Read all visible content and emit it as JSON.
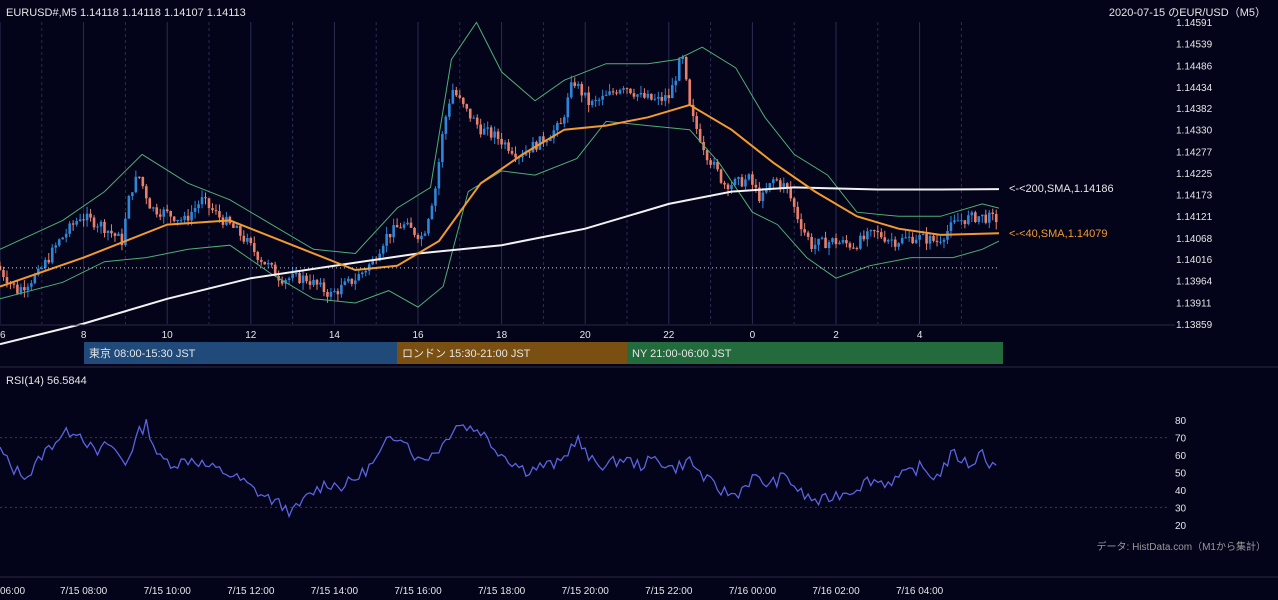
{
  "header": {
    "ticker": "EURUSD#,M5 1.14118 1.14118 1.14107 1.14113",
    "chart_title": "2020-07-15 のEUR/USD（M5）"
  },
  "sessions": [
    {
      "label": "東京 08:00-15:30 JST",
      "color": "#1f4a7a"
    },
    {
      "label": "ロンドン 15:30-21:00 JST",
      "color": "#7a4f12"
    },
    {
      "label": "NY 21:00-06:00 JST",
      "color": "#236a3c"
    }
  ],
  "indicators": {
    "rsi_label": "RSI(14) 56.5844",
    "sma200_label": "<-<200,SMA,1.14186",
    "sma40_label": "<-<40,SMA,1.14079"
  },
  "source_note": "データ: HistData.com（M1から集計）",
  "colors": {
    "background": "#03031a",
    "bull": "#2f86d6",
    "bear": "#e8806a",
    "sma200": "#f2f2f2",
    "sma40": "#f29a2e",
    "bollinger": "#4fae74",
    "rsi": "#5b63e0",
    "rsi_ref": "#3a3a55"
  },
  "chart_data": [
    {
      "type": "candlestick",
      "y_ticks": [
        "1.14591",
        "1.14539",
        "1.14486",
        "1.14434",
        "1.14382",
        "1.14330",
        "1.14277",
        "1.14225",
        "1.14173",
        "1.14121",
        "1.14068",
        "1.14016",
        "1.13964",
        "1.13911",
        "1.13859"
      ],
      "ylim": [
        1.13859,
        1.14591
      ],
      "x_ticks_hours": [
        "6",
        "8",
        "10",
        "12",
        "14",
        "16",
        "18",
        "20",
        "22",
        "0",
        "2",
        "4"
      ],
      "x_ticks_dates": [
        "06:00",
        "7/15 08:00",
        "7/15 10:00",
        "7/15 12:00",
        "7/15 14:00",
        "7/15 16:00",
        "7/15 18:00",
        "7/15 20:00",
        "7/15 22:00",
        "7/16 00:00",
        "7/16 02:00",
        "7/16 04:00"
      ],
      "x_range_hours": [
        6,
        29.9
      ],
      "last_price": 1.14113,
      "reference_line": 1.13995,
      "price_path": [
        [
          6.0,
          1.14
        ],
        [
          6.5,
          1.1394
        ],
        [
          7.0,
          1.1398
        ],
        [
          7.5,
          1.1406
        ],
        [
          8.0,
          1.1412
        ],
        [
          8.5,
          1.141
        ],
        [
          9.0,
          1.1406
        ],
        [
          9.2,
          1.1418
        ],
        [
          9.4,
          1.1422
        ],
        [
          9.7,
          1.1414
        ],
        [
          10.0,
          1.1413
        ],
        [
          10.5,
          1.1411
        ],
        [
          10.9,
          1.1416
        ],
        [
          11.2,
          1.1413
        ],
        [
          11.8,
          1.1408
        ],
        [
          12.3,
          1.1402
        ],
        [
          12.8,
          1.1397
        ],
        [
          13.4,
          1.1397
        ],
        [
          14.0,
          1.1393
        ],
        [
          14.6,
          1.1397
        ],
        [
          15.0,
          1.1401
        ],
        [
          15.3,
          1.1407
        ],
        [
          15.7,
          1.141
        ],
        [
          16.2,
          1.1407
        ],
        [
          16.5,
          1.1419
        ],
        [
          16.7,
          1.1434
        ],
        [
          16.9,
          1.1443
        ],
        [
          17.2,
          1.1438
        ],
        [
          17.6,
          1.1433
        ],
        [
          18.0,
          1.1431
        ],
        [
          18.5,
          1.1427
        ],
        [
          19.0,
          1.143
        ],
        [
          19.5,
          1.1434
        ],
        [
          19.8,
          1.1445
        ],
        [
          20.2,
          1.1439
        ],
        [
          20.6,
          1.1441
        ],
        [
          21.0,
          1.1444
        ],
        [
          21.4,
          1.1441
        ],
        [
          21.8,
          1.144
        ],
        [
          22.1,
          1.1441
        ],
        [
          22.4,
          1.1451
        ],
        [
          22.6,
          1.1437
        ],
        [
          23.0,
          1.1427
        ],
        [
          23.4,
          1.142
        ],
        [
          23.7,
          1.142
        ],
        [
          24.0,
          1.1421
        ],
        [
          24.3,
          1.1416
        ],
        [
          24.6,
          1.1421
        ],
        [
          24.9,
          1.1419
        ],
        [
          25.2,
          1.1411
        ],
        [
          25.5,
          1.1405
        ],
        [
          26.0,
          1.1406
        ],
        [
          26.5,
          1.1405
        ],
        [
          27.0,
          1.1408
        ],
        [
          27.5,
          1.1406
        ],
        [
          28.0,
          1.1407
        ],
        [
          28.5,
          1.1406
        ],
        [
          29.0,
          1.1411
        ],
        [
          29.5,
          1.1412
        ],
        [
          29.9,
          1.14113
        ]
      ],
      "sma200_path": [
        [
          6.0,
          1.1381
        ],
        [
          8.0,
          1.1386
        ],
        [
          10.0,
          1.1392
        ],
        [
          12.0,
          1.1397
        ],
        [
          14.0,
          1.14
        ],
        [
          16.0,
          1.1403
        ],
        [
          18.0,
          1.1405
        ],
        [
          20.0,
          1.1409
        ],
        [
          22.0,
          1.1415
        ],
        [
          23.5,
          1.1418
        ],
        [
          25.0,
          1.1419
        ],
        [
          27.0,
          1.14185
        ],
        [
          28.5,
          1.14185
        ],
        [
          29.9,
          1.14186
        ]
      ],
      "sma40_path": [
        [
          6.0,
          1.1395
        ],
        [
          8.0,
          1.1402
        ],
        [
          10.0,
          1.141
        ],
        [
          11.5,
          1.1411
        ],
        [
          13.0,
          1.1405
        ],
        [
          14.5,
          1.1399
        ],
        [
          15.5,
          1.14
        ],
        [
          16.5,
          1.1406
        ],
        [
          17.5,
          1.142
        ],
        [
          18.5,
          1.1427
        ],
        [
          19.5,
          1.1433
        ],
        [
          20.5,
          1.1434
        ],
        [
          21.5,
          1.1436
        ],
        [
          22.5,
          1.1439
        ],
        [
          23.5,
          1.1433
        ],
        [
          24.5,
          1.1425
        ],
        [
          25.5,
          1.1418
        ],
        [
          26.5,
          1.1412
        ],
        [
          27.5,
          1.1409
        ],
        [
          28.5,
          1.14075
        ],
        [
          29.9,
          1.14079
        ]
      ],
      "bollinger_upper_path": [
        [
          6.0,
          1.1404
        ],
        [
          7.5,
          1.1411
        ],
        [
          8.5,
          1.1418
        ],
        [
          9.4,
          1.1427
        ],
        [
          10.5,
          1.142
        ],
        [
          11.5,
          1.1416
        ],
        [
          12.5,
          1.141
        ],
        [
          13.5,
          1.1404
        ],
        [
          14.5,
          1.1403
        ],
        [
          15.5,
          1.1414
        ],
        [
          16.3,
          1.1419
        ],
        [
          16.8,
          1.145
        ],
        [
          17.4,
          1.1459
        ],
        [
          18.0,
          1.1447
        ],
        [
          18.8,
          1.144
        ],
        [
          19.5,
          1.1445
        ],
        [
          20.5,
          1.1449
        ],
        [
          21.5,
          1.1449
        ],
        [
          22.2,
          1.145
        ],
        [
          22.8,
          1.1453
        ],
        [
          23.6,
          1.1448
        ],
        [
          24.3,
          1.1436
        ],
        [
          25.0,
          1.1427
        ],
        [
          25.8,
          1.1422
        ],
        [
          26.5,
          1.1413
        ],
        [
          27.5,
          1.1412
        ],
        [
          28.5,
          1.1412
        ],
        [
          29.5,
          1.1415
        ],
        [
          29.9,
          1.1414
        ]
      ],
      "bollinger_lower_path": [
        [
          6.0,
          1.1392
        ],
        [
          7.5,
          1.1396
        ],
        [
          8.5,
          1.1401
        ],
        [
          9.5,
          1.1402
        ],
        [
          10.5,
          1.1404
        ],
        [
          11.5,
          1.1405
        ],
        [
          12.5,
          1.1398
        ],
        [
          13.5,
          1.1392
        ],
        [
          14.5,
          1.1391
        ],
        [
          15.3,
          1.1394
        ],
        [
          16.0,
          1.139
        ],
        [
          16.6,
          1.1395
        ],
        [
          17.2,
          1.1418
        ],
        [
          18.0,
          1.1423
        ],
        [
          18.8,
          1.1422
        ],
        [
          19.8,
          1.1426
        ],
        [
          20.5,
          1.1435
        ],
        [
          21.5,
          1.1434
        ],
        [
          22.5,
          1.1433
        ],
        [
          23.2,
          1.1425
        ],
        [
          24.0,
          1.1413
        ],
        [
          24.6,
          1.141
        ],
        [
          25.3,
          1.1402
        ],
        [
          26.0,
          1.1397
        ],
        [
          26.8,
          1.14
        ],
        [
          27.8,
          1.1402
        ],
        [
          28.8,
          1.1402
        ],
        [
          29.5,
          1.1404
        ],
        [
          29.9,
          1.1406
        ]
      ]
    },
    {
      "type": "line",
      "series_name": "RSI(14)",
      "y_ticks": [
        "80",
        "70",
        "60",
        "50",
        "40",
        "30",
        "20"
      ],
      "ylim": [
        17,
        87
      ],
      "path": [
        [
          6.0,
          63
        ],
        [
          6.3,
          52
        ],
        [
          6.7,
          48
        ],
        [
          7.0,
          60
        ],
        [
          7.4,
          70
        ],
        [
          7.8,
          75
        ],
        [
          8.0,
          70
        ],
        [
          8.3,
          60
        ],
        [
          8.6,
          67
        ],
        [
          9.0,
          55
        ],
        [
          9.3,
          72
        ],
        [
          9.5,
          78
        ],
        [
          9.8,
          58
        ],
        [
          10.2,
          55
        ],
        [
          10.6,
          58
        ],
        [
          11.0,
          53
        ],
        [
          11.4,
          50
        ],
        [
          11.8,
          45
        ],
        [
          12.2,
          38
        ],
        [
          12.6,
          33
        ],
        [
          13.0,
          27
        ],
        [
          13.4,
          37
        ],
        [
          13.8,
          44
        ],
        [
          14.2,
          42
        ],
        [
          14.6,
          48
        ],
        [
          15.0,
          57
        ],
        [
          15.3,
          69
        ],
        [
          15.6,
          72
        ],
        [
          16.0,
          57
        ],
        [
          16.3,
          60
        ],
        [
          16.6,
          66
        ],
        [
          16.9,
          78
        ],
        [
          17.2,
          76
        ],
        [
          17.5,
          74
        ],
        [
          17.8,
          65
        ],
        [
          18.2,
          57
        ],
        [
          18.6,
          51
        ],
        [
          19.0,
          54
        ],
        [
          19.4,
          55
        ],
        [
          19.8,
          70
        ],
        [
          20.1,
          57
        ],
        [
          20.5,
          54
        ],
        [
          20.9,
          58
        ],
        [
          21.3,
          54
        ],
        [
          21.7,
          58
        ],
        [
          22.1,
          52
        ],
        [
          22.5,
          57
        ],
        [
          22.8,
          48
        ],
        [
          23.2,
          40
        ],
        [
          23.6,
          37
        ],
        [
          24.0,
          47
        ],
        [
          24.4,
          43
        ],
        [
          24.8,
          48
        ],
        [
          25.2,
          37
        ],
        [
          25.6,
          33
        ],
        [
          26.0,
          37
        ],
        [
          26.4,
          40
        ],
        [
          26.8,
          46
        ],
        [
          27.2,
          44
        ],
        [
          27.6,
          48
        ],
        [
          28.0,
          53
        ],
        [
          28.4,
          47
        ],
        [
          28.8,
          61
        ],
        [
          29.2,
          54
        ],
        [
          29.5,
          62
        ],
        [
          29.7,
          54
        ],
        [
          29.9,
          56.6
        ]
      ]
    }
  ]
}
